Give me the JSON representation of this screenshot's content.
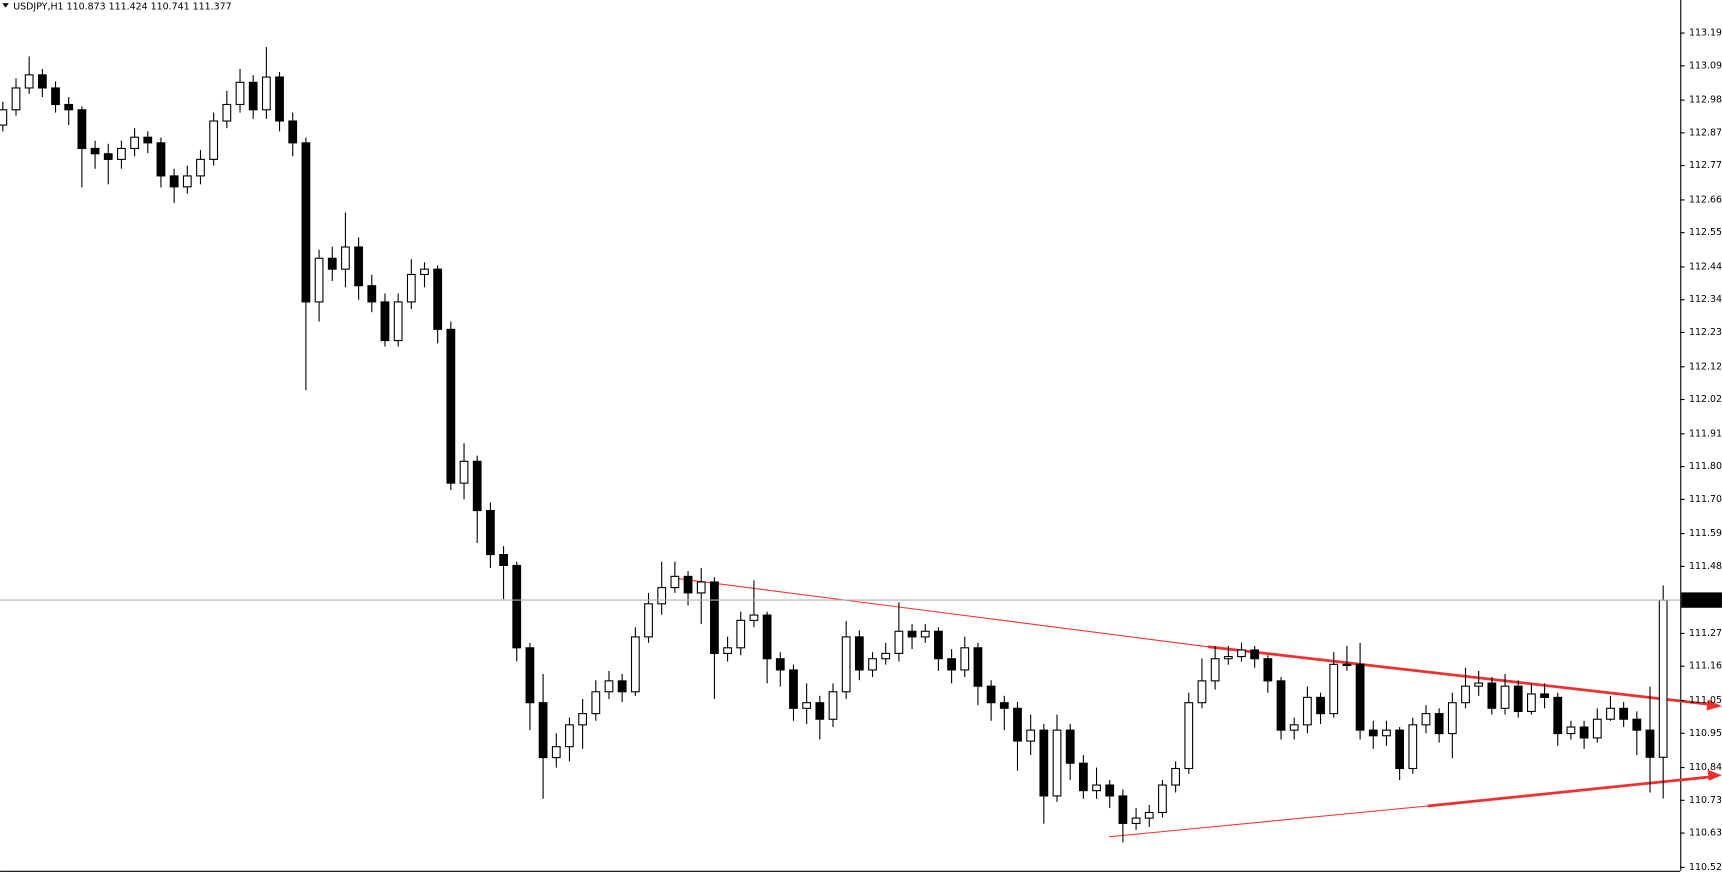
{
  "chart_data": {
    "type": "candlestick",
    "title": "USDJPY,H1",
    "ylim": [
      110.509,
      113.301
    ],
    "yticks": [
      113.195,
      {
        "value": 113.09,
        "label": "113.090"
      },
      {
        "value": 112.98,
        "label": "112.980"
      },
      112.875,
      {
        "value": 112.77,
        "label": "112.770"
      },
      {
        "value": 112.66,
        "label": "112.660"
      },
      112.555,
      112.445,
      {
        "value": 112.34,
        "label": "112.340"
      },
      112.235,
      112.125,
      {
        "value": 112.02,
        "label": "112.020"
      },
      {
        "value": 111.91,
        "label": "111.910"
      },
      111.805,
      {
        "value": 111.7,
        "label": "111.700"
      },
      {
        "value": 111.59,
        "label": "111.590"
      },
      111.485,
      {
        "value": 111.27,
        "label": "111.270"
      },
      111.165,
      111.055,
      {
        "value": 110.95,
        "label": "110.950"
      },
      {
        "value": 110.84,
        "label": "110.840"
      },
      110.735,
      {
        "value": 110.63,
        "label": "110.630"
      },
      {
        "value": 110.52,
        "label": "110.520"
      }
    ],
    "up_color": "#ffffff",
    "down_color": "#000000",
    "outline_color": "#000000",
    "ohlc": [
      [
        112.9,
        112.975,
        112.88,
        112.949
      ],
      [
        112.949,
        113.05,
        112.93,
        113.019
      ],
      [
        113.019,
        113.12,
        113.0,
        113.061
      ],
      [
        113.061,
        113.08,
        112.99,
        113.019
      ],
      [
        113.019,
        113.04,
        112.94,
        112.966
      ],
      [
        112.966,
        112.99,
        112.9,
        112.949
      ],
      [
        112.949,
        112.96,
        112.7,
        112.825
      ],
      [
        112.825,
        112.85,
        112.76,
        112.808
      ],
      [
        112.808,
        112.84,
        112.71,
        112.79
      ],
      [
        112.79,
        112.85,
        112.76,
        112.825
      ],
      [
        112.825,
        112.89,
        112.8,
        112.861
      ],
      [
        112.861,
        112.88,
        112.81,
        112.843
      ],
      [
        112.843,
        112.86,
        112.7,
        112.737
      ],
      [
        112.737,
        112.76,
        112.65,
        112.702
      ],
      [
        112.702,
        112.77,
        112.68,
        112.737
      ],
      [
        112.737,
        112.82,
        112.71,
        112.79
      ],
      [
        112.79,
        112.94,
        112.77,
        112.913
      ],
      [
        112.913,
        113.01,
        112.89,
        112.966
      ],
      [
        112.966,
        113.08,
        112.94,
        113.037
      ],
      [
        113.037,
        113.06,
        112.92,
        112.949
      ],
      [
        112.949,
        113.15,
        112.92,
        113.054
      ],
      [
        113.054,
        113.07,
        112.88,
        112.913
      ],
      [
        112.913,
        112.94,
        112.8,
        112.843
      ],
      [
        112.843,
        112.86,
        112.05,
        112.333
      ],
      [
        112.333,
        112.5,
        112.27,
        112.473
      ],
      [
        112.473,
        112.51,
        112.4,
        112.438
      ],
      [
        112.438,
        112.62,
        112.38,
        112.509
      ],
      [
        112.509,
        112.54,
        112.34,
        112.385
      ],
      [
        112.385,
        112.42,
        112.3,
        112.333
      ],
      [
        112.333,
        112.36,
        112.19,
        112.209
      ],
      [
        112.209,
        112.36,
        112.19,
        112.333
      ],
      [
        112.333,
        112.47,
        112.31,
        112.421
      ],
      [
        112.421,
        112.46,
        112.38,
        112.438
      ],
      [
        112.438,
        112.45,
        112.2,
        112.245
      ],
      [
        112.245,
        112.27,
        111.73,
        111.752
      ],
      [
        111.752,
        111.88,
        111.7,
        111.822
      ],
      [
        111.822,
        111.84,
        111.56,
        111.664
      ],
      [
        111.664,
        111.69,
        111.48,
        111.523
      ],
      [
        111.523,
        111.55,
        111.38,
        111.488
      ],
      [
        111.488,
        111.5,
        111.18,
        111.224
      ],
      [
        111.224,
        111.24,
        110.96,
        111.048
      ],
      [
        111.048,
        111.14,
        110.74,
        110.872
      ],
      [
        110.872,
        110.95,
        110.84,
        110.907
      ],
      [
        110.907,
        111.0,
        110.86,
        110.977
      ],
      [
        110.977,
        111.06,
        110.9,
        111.013
      ],
      [
        111.013,
        111.12,
        110.99,
        111.083
      ],
      [
        111.083,
        111.15,
        111.06,
        111.118
      ],
      [
        111.118,
        111.14,
        111.05,
        111.083
      ],
      [
        111.083,
        111.29,
        111.07,
        111.259
      ],
      [
        111.259,
        111.4,
        111.24,
        111.365
      ],
      [
        111.365,
        111.5,
        111.33,
        111.417
      ],
      [
        111.417,
        111.5,
        111.4,
        111.453
      ],
      [
        111.453,
        111.47,
        111.36,
        111.4
      ],
      [
        111.4,
        111.48,
        111.3,
        111.435
      ],
      [
        111.435,
        111.45,
        111.06,
        111.206
      ],
      [
        111.206,
        111.26,
        111.18,
        111.224
      ],
      [
        111.224,
        111.34,
        111.2,
        111.312
      ],
      [
        111.312,
        111.44,
        111.29,
        111.329
      ],
      [
        111.329,
        111.34,
        111.11,
        111.189
      ],
      [
        111.189,
        111.21,
        111.1,
        111.153
      ],
      [
        111.153,
        111.17,
        110.99,
        111.03
      ],
      [
        111.03,
        111.11,
        110.98,
        111.048
      ],
      [
        111.048,
        111.07,
        110.93,
        110.995
      ],
      [
        110.995,
        111.11,
        110.97,
        111.083
      ],
      [
        111.083,
        111.31,
        111.06,
        111.259
      ],
      [
        111.259,
        111.28,
        111.12,
        111.153
      ],
      [
        111.153,
        111.21,
        111.13,
        111.189
      ],
      [
        111.189,
        111.24,
        111.17,
        111.206
      ],
      [
        111.206,
        111.37,
        111.18,
        111.277
      ],
      [
        111.277,
        111.3,
        111.22,
        111.259
      ],
      [
        111.259,
        111.3,
        111.24,
        111.277
      ],
      [
        111.277,
        111.29,
        111.15,
        111.189
      ],
      [
        111.189,
        111.22,
        111.11,
        111.153
      ],
      [
        111.153,
        111.26,
        111.13,
        111.224
      ],
      [
        111.224,
        111.24,
        111.04,
        111.101
      ],
      [
        111.101,
        111.12,
        110.99,
        111.048
      ],
      [
        111.048,
        111.07,
        110.96,
        111.03
      ],
      [
        111.03,
        111.05,
        110.83,
        110.925
      ],
      [
        110.925,
        111.01,
        110.88,
        110.96
      ],
      [
        110.96,
        110.98,
        110.66,
        110.749
      ],
      [
        110.749,
        111.01,
        110.73,
        110.96
      ],
      [
        110.96,
        110.98,
        110.8,
        110.854
      ],
      [
        110.854,
        110.88,
        110.74,
        110.766
      ],
      [
        110.766,
        110.84,
        110.74,
        110.784
      ],
      [
        110.784,
        110.8,
        110.71,
        110.749
      ],
      [
        110.749,
        110.77,
        110.6,
        110.661
      ],
      [
        110.661,
        110.71,
        110.64,
        110.678
      ],
      [
        110.678,
        110.72,
        110.65,
        110.696
      ],
      [
        110.696,
        110.8,
        110.68,
        110.784
      ],
      [
        110.784,
        110.86,
        110.76,
        110.837
      ],
      [
        110.837,
        111.08,
        110.82,
        111.048
      ],
      [
        111.048,
        111.19,
        111.03,
        111.118
      ],
      [
        111.118,
        111.23,
        111.09,
        111.189
      ],
      [
        111.189,
        111.23,
        111.17,
        111.196
      ],
      [
        111.196,
        111.24,
        111.18,
        111.217
      ],
      [
        111.217,
        111.23,
        111.16,
        111.189
      ],
      [
        111.189,
        111.2,
        111.08,
        111.118
      ],
      [
        111.118,
        111.13,
        110.93,
        110.96
      ],
      [
        110.96,
        111.0,
        110.93,
        110.977
      ],
      [
        110.977,
        111.1,
        110.95,
        111.065
      ],
      [
        111.065,
        111.08,
        110.98,
        111.013
      ],
      [
        111.013,
        111.21,
        111.0,
        111.171
      ],
      [
        111.171,
        111.23,
        111.15,
        111.171
      ],
      [
        111.171,
        111.24,
        110.93,
        110.96
      ],
      [
        110.96,
        110.99,
        110.9,
        110.942
      ],
      [
        110.942,
        110.99,
        110.91,
        110.96
      ],
      [
        110.96,
        110.97,
        110.8,
        110.837
      ],
      [
        110.837,
        111.0,
        110.82,
        110.977
      ],
      [
        110.977,
        111.04,
        110.95,
        111.013
      ],
      [
        111.013,
        111.03,
        110.92,
        110.949
      ],
      [
        110.949,
        111.08,
        110.87,
        111.048
      ],
      [
        111.048,
        111.16,
        111.03,
        111.101
      ],
      [
        111.101,
        111.15,
        111.07,
        111.111
      ],
      [
        111.111,
        111.13,
        111.01,
        111.03
      ],
      [
        111.03,
        111.14,
        111.01,
        111.101
      ],
      [
        111.101,
        111.12,
        111.0,
        111.02
      ],
      [
        111.02,
        111.11,
        111.01,
        111.076
      ],
      [
        111.076,
        111.11,
        111.03,
        111.065
      ],
      [
        111.065,
        111.08,
        110.91,
        110.949
      ],
      [
        110.949,
        110.99,
        110.93,
        110.97
      ],
      [
        110.97,
        110.99,
        110.9,
        110.935
      ],
      [
        110.935,
        111.03,
        110.92,
        110.995
      ],
      [
        110.995,
        111.07,
        110.99,
        111.03
      ],
      [
        111.03,
        111.05,
        110.97,
        110.995
      ],
      [
        110.995,
        111.02,
        110.88,
        110.96
      ],
      [
        110.96,
        111.1,
        110.76,
        110.873
      ],
      [
        110.873,
        111.424,
        110.741,
        111.377
      ]
    ]
  }
}
